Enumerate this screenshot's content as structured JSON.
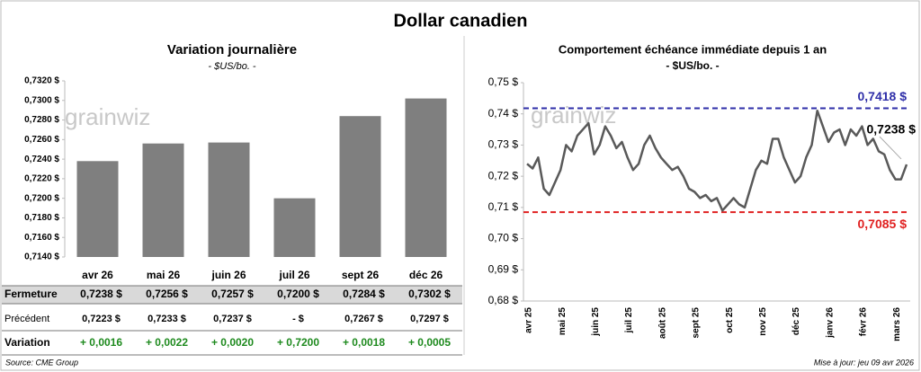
{
  "title": "Dollar canadien",
  "watermark": "grainwiz",
  "chart_data": [
    {
      "type": "bar",
      "title": "Variation journalière",
      "subtitle": "- $US/bo. -",
      "categories": [
        "avr 26",
        "mai 26",
        "juin 26",
        "juil 26",
        "sept 26",
        "déc 26"
      ],
      "values": [
        0.7238,
        0.7256,
        0.7257,
        0.72,
        0.7284,
        0.7302
      ],
      "color": "#7f7f7f",
      "ylim": [
        0.714,
        0.732
      ],
      "yticks": [
        {
          "value": 0.714,
          "label": "0,7140 $"
        },
        {
          "value": 0.716,
          "label": "0,7160 $"
        },
        {
          "value": 0.718,
          "label": "0,7180 $"
        },
        {
          "value": 0.72,
          "label": "0,7200 $"
        },
        {
          "value": 0.722,
          "label": "0,7220 $"
        },
        {
          "value": 0.724,
          "label": "0,7240 $"
        },
        {
          "value": 0.726,
          "label": "0,7260 $"
        },
        {
          "value": 0.728,
          "label": "0,7280 $"
        },
        {
          "value": 0.73,
          "label": "0,7300 $"
        },
        {
          "value": 0.732,
          "label": "0,7320 $"
        }
      ],
      "grid": false
    },
    {
      "type": "line",
      "title": "Comportement échéance immédiate depuis 1 an",
      "subtitle": "- $US/bo. -",
      "xticks": [
        "avr 25",
        "mai 25",
        "juin 25",
        "juil 25",
        "août 25",
        "sept 25",
        "oct 25",
        "nov 25",
        "déc 25",
        "janv 26",
        "févr 26",
        "mars 26"
      ],
      "color": "#595959",
      "values": [
        0.724,
        0.7225,
        0.726,
        0.716,
        0.714,
        0.718,
        0.722,
        0.73,
        0.728,
        0.733,
        0.735,
        0.737,
        0.727,
        0.73,
        0.736,
        0.733,
        0.729,
        0.731,
        0.726,
        0.722,
        0.724,
        0.73,
        0.733,
        0.729,
        0.726,
        0.724,
        0.722,
        0.723,
        0.72,
        0.716,
        0.715,
        0.713,
        0.714,
        0.712,
        0.713,
        0.709,
        0.711,
        0.713,
        0.711,
        0.71,
        0.716,
        0.722,
        0.725,
        0.724,
        0.732,
        0.732,
        0.726,
        0.722,
        0.718,
        0.72,
        0.726,
        0.73,
        0.741,
        0.736,
        0.731,
        0.734,
        0.735,
        0.73,
        0.735,
        0.733,
        0.736,
        0.73,
        0.732,
        0.728,
        0.727,
        0.722,
        0.719,
        0.719,
        0.7238
      ],
      "ylim": [
        0.68,
        0.75
      ],
      "yticks": [
        {
          "value": 0.68,
          "label": "0,68 $"
        },
        {
          "value": 0.69,
          "label": "0,69 $"
        },
        {
          "value": 0.7,
          "label": "0,70 $"
        },
        {
          "value": 0.71,
          "label": "0,71 $"
        },
        {
          "value": 0.72,
          "label": "0,72 $"
        },
        {
          "value": 0.73,
          "label": "0,73 $"
        },
        {
          "value": 0.74,
          "label": "0,74 $"
        },
        {
          "value": 0.75,
          "label": "0,75 $"
        }
      ],
      "high": {
        "value": 0.7418,
        "label": "0,7418 $",
        "color": "#2e2ea8"
      },
      "low": {
        "value": 0.7085,
        "label": "0,7085 $",
        "color": "#e02020"
      },
      "last_label": "0,7238 $"
    }
  ],
  "table": {
    "rows": [
      [
        "Fermeture",
        "0,7238 $",
        "0,7256 $",
        "0,7257 $",
        "0,7200 $",
        "0,7284 $",
        "0,7302 $"
      ],
      [
        "Précédent",
        "0,7223 $",
        "0,7233 $",
        "0,7237 $",
        "- $",
        "0,7267 $",
        "0,7297 $"
      ],
      [
        "Variation",
        "+ 0,0016",
        "+ 0,0022",
        "+ 0,0020",
        "+ 0,7200",
        "+ 0,0018",
        "+ 0,0005"
      ]
    ]
  },
  "footer": {
    "source": "Source: CME Group",
    "updated": "Mise à jour: jeu 09 avr 2026"
  }
}
